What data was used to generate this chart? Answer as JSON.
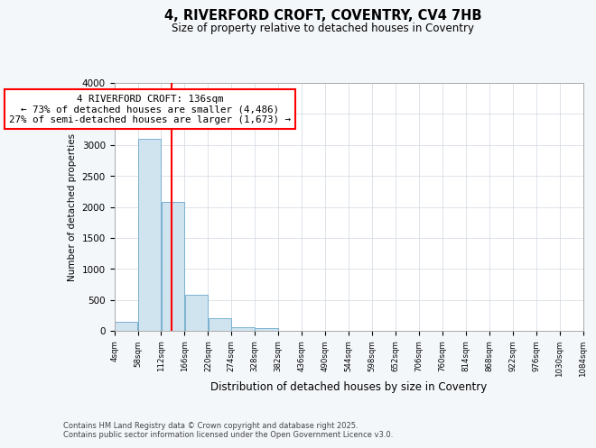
{
  "title": "4, RIVERFORD CROFT, COVENTRY, CV4 7HB",
  "subtitle": "Size of property relative to detached houses in Coventry",
  "xlabel": "Distribution of detached houses by size in Coventry",
  "ylabel": "Number of detached properties",
  "bar_color": "#d0e4f0",
  "bar_edge_color": "#7ab0d0",
  "vline_color": "red",
  "vline_x": 136,
  "annotation_text": "4 RIVERFORD CROFT: 136sqm\n← 73% of detached houses are smaller (4,486)\n27% of semi-detached houses are larger (1,673) →",
  "bin_edges": [
    4,
    58,
    112,
    166,
    220,
    274,
    328,
    382,
    436,
    490,
    544,
    598,
    652,
    706,
    760,
    814,
    868,
    922,
    976,
    1030,
    1084
  ],
  "bin_counts": [
    150,
    3100,
    2080,
    580,
    200,
    60,
    40,
    0,
    0,
    0,
    0,
    0,
    0,
    0,
    0,
    0,
    0,
    0,
    0,
    0
  ],
  "xlim": [
    4,
    1084
  ],
  "ylim": [
    0,
    4000
  ],
  "yticks": [
    0,
    500,
    1000,
    1500,
    2000,
    2500,
    3000,
    3500,
    4000
  ],
  "footer_text": "Contains HM Land Registry data © Crown copyright and database right 2025.\nContains public sector information licensed under the Open Government Licence v3.0.",
  "background_color": "#f4f7fa",
  "plot_bg_color": "#ffffff",
  "grid_color": "#d0d8e0"
}
